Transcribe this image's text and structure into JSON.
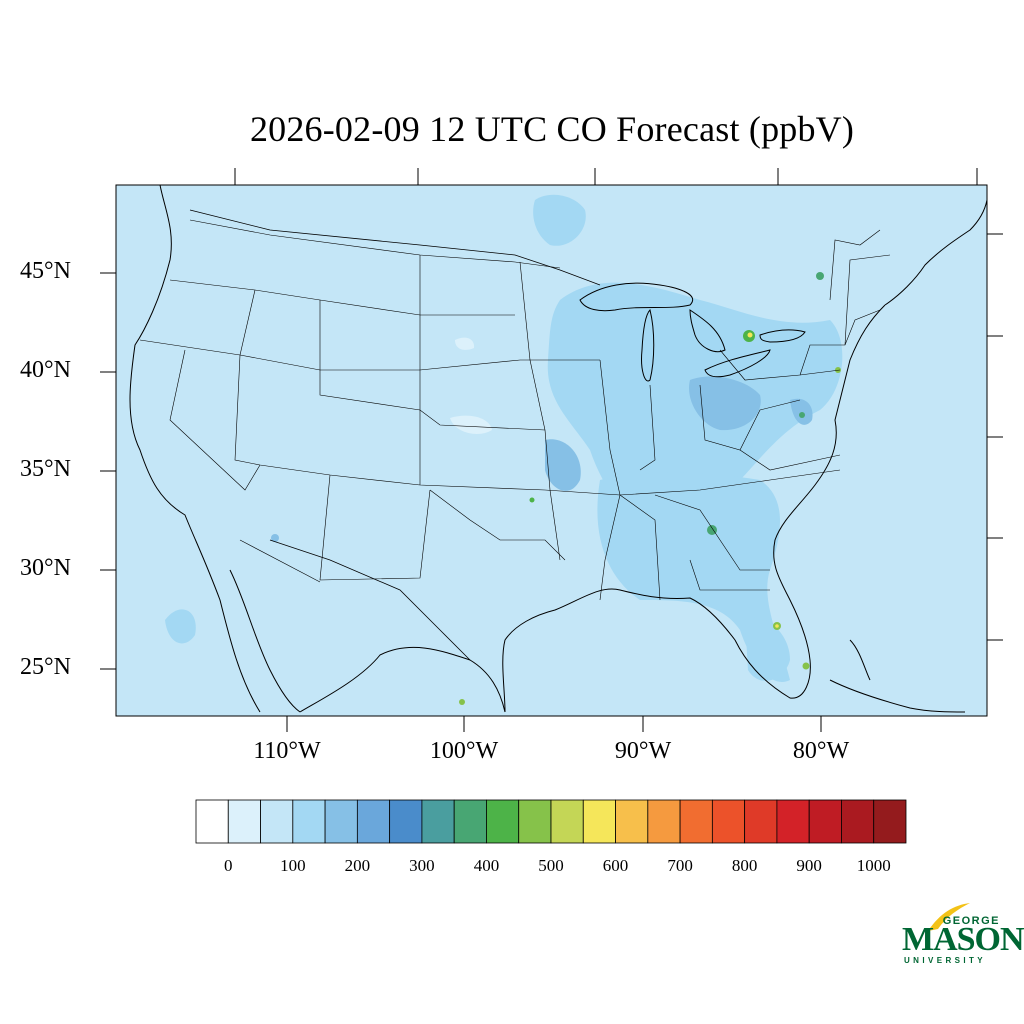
{
  "title": "2026-02-09 12 UTC CO Forecast (ppbV)",
  "map": {
    "region": "Contiguous United States",
    "background_fill": "#c4e6f7",
    "lat_labels": [
      "45°N",
      "40°N",
      "35°N",
      "30°N",
      "25°N"
    ],
    "lon_labels": [
      "110°W",
      "100°W",
      "90°W",
      "80°W"
    ]
  },
  "colorbar": {
    "labels": [
      "0",
      "100",
      "200",
      "300",
      "400",
      "500",
      "600",
      "700",
      "800",
      "900",
      "1000"
    ],
    "colors": [
      "#ffffff",
      "#dcf1fb",
      "#c4e6f7",
      "#a3d8f3",
      "#86c0e6",
      "#6aa7db",
      "#4a8ccb",
      "#4a9e9f",
      "#48a673",
      "#4db348",
      "#86c24a",
      "#c4d656",
      "#f5e65a",
      "#f7bf4b",
      "#f59a3f",
      "#f16d30",
      "#ec522a",
      "#df3a28",
      "#d32228",
      "#bf1c24",
      "#aa1a20",
      "#941b1d"
    ]
  },
  "logo": {
    "line1": "GEORGE",
    "line2": "MASON",
    "line3": "UNIVERSITY",
    "brand_color": "#006633",
    "accent_color": "#f3c217"
  }
}
